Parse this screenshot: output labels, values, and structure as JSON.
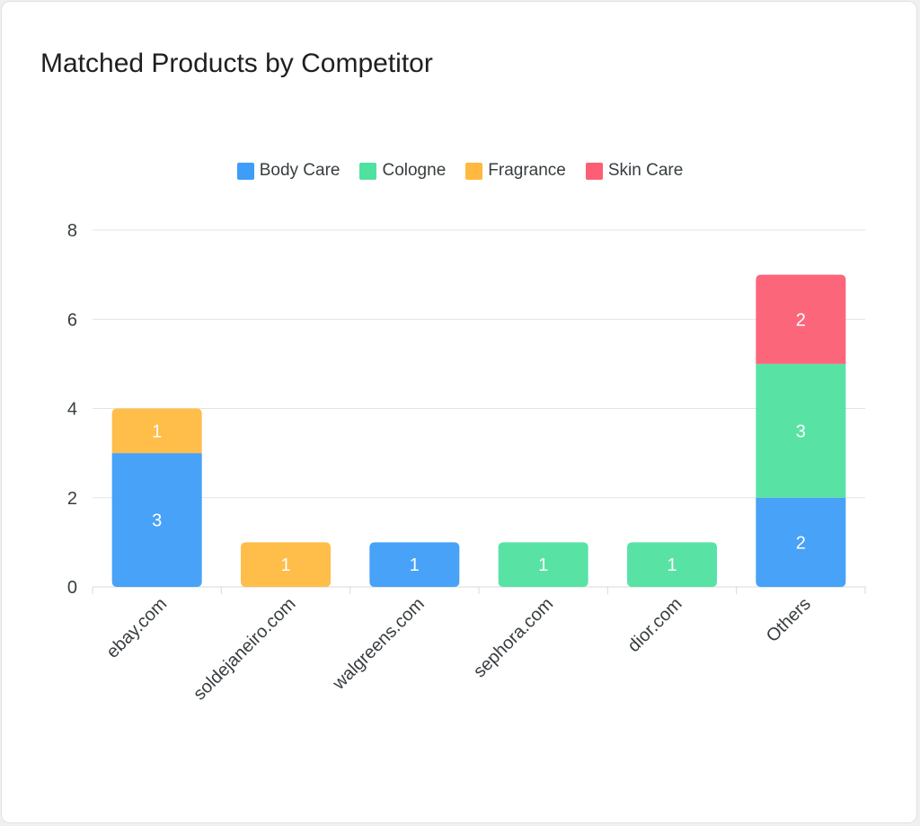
{
  "card": {
    "title": "Matched Products by Competitor"
  },
  "colors": {
    "Body Care": "#3d9df8",
    "Cologne": "#4fe1a0",
    "Fragrance": "#ffb940",
    "Skin Care": "#fc5e74"
  },
  "chart_data": {
    "type": "bar",
    "stacked": true,
    "title": "Matched Products by Competitor",
    "xlabel": "",
    "ylabel": "",
    "categories": [
      "ebay.com",
      "soldejaneiro.com",
      "walgreens.com",
      "sephora.com",
      "dior.com",
      "Others"
    ],
    "series": [
      {
        "name": "Body Care",
        "values": [
          3,
          0,
          1,
          0,
          0,
          2
        ]
      },
      {
        "name": "Cologne",
        "values": [
          0,
          0,
          0,
          1,
          1,
          3
        ]
      },
      {
        "name": "Fragrance",
        "values": [
          1,
          1,
          0,
          0,
          0,
          0
        ]
      },
      {
        "name": "Skin Care",
        "values": [
          0,
          0,
          0,
          0,
          0,
          2
        ]
      }
    ],
    "ylim": [
      0,
      8
    ],
    "yticks": [
      0,
      2,
      4,
      6,
      8
    ],
    "grid": true,
    "legend_position": "top-center",
    "data_labels": true
  }
}
